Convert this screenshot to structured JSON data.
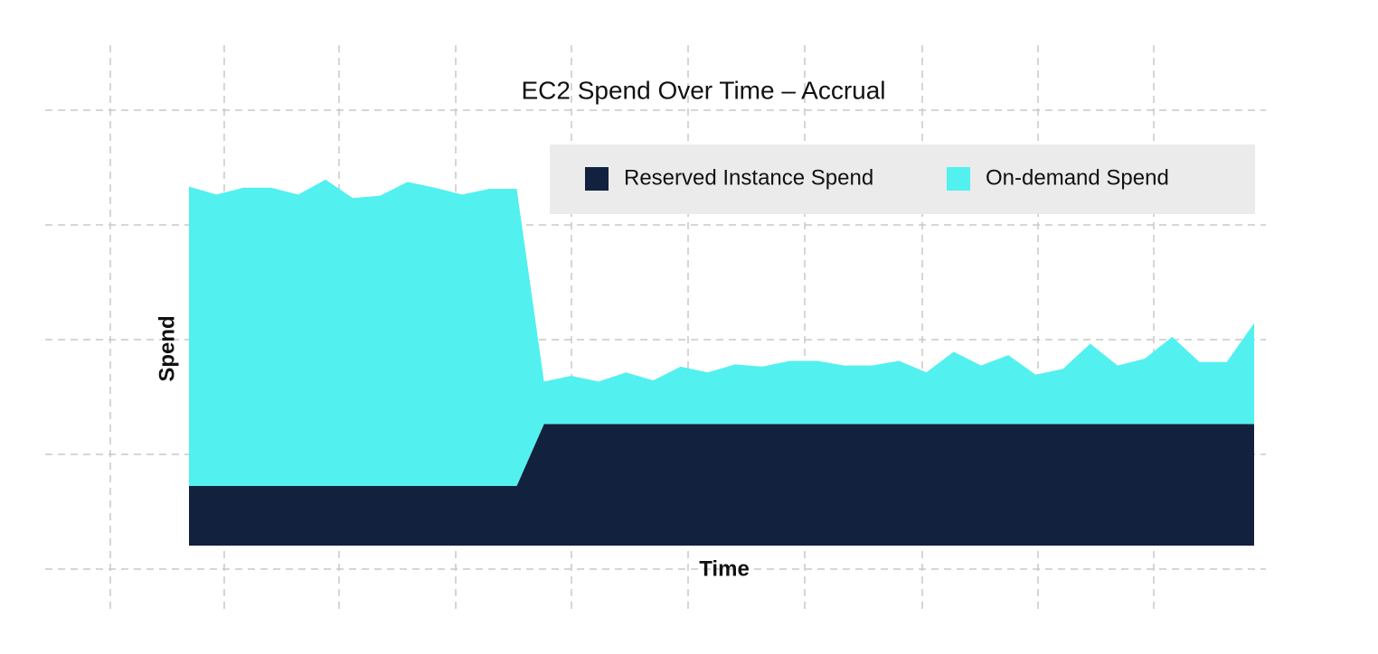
{
  "chart_data": {
    "type": "stacked-area",
    "title": "EC2 Spend Over Time – Accrual",
    "xlabel": "Time",
    "ylabel": "Spend",
    "categories": [
      null,
      null,
      null,
      null,
      null,
      null,
      null,
      null,
      null,
      null,
      null,
      null,
      null,
      null,
      null,
      null,
      null,
      null,
      null,
      null,
      null,
      null,
      null,
      null,
      null,
      null,
      null,
      null,
      null,
      null,
      null,
      null,
      null,
      null,
      null,
      null,
      null,
      null,
      null,
      null
    ],
    "ylim": [
      0,
      40
    ],
    "series": [
      {
        "name": "Reserved Instance Spend",
        "color": "#12213d",
        "values": [
          5.2,
          5.2,
          5.2,
          5.2,
          5.2,
          5.2,
          5.2,
          5.2,
          5.2,
          5.2,
          5.2,
          5.2,
          5.2,
          10.6,
          10.6,
          10.6,
          10.6,
          10.6,
          10.6,
          10.6,
          10.6,
          10.6,
          10.6,
          10.6,
          10.6,
          10.6,
          10.6,
          10.6,
          10.6,
          10.6,
          10.6,
          10.6,
          10.6,
          10.6,
          10.6,
          10.6,
          10.6,
          10.6,
          10.6,
          10.6
        ]
      },
      {
        "name": "On-demand Spend",
        "color": "#53f0f0",
        "values": [
          26.1,
          25.4,
          26.0,
          26.0,
          25.4,
          26.7,
          25.1,
          25.3,
          26.5,
          26.0,
          25.4,
          25.9,
          25.9,
          3.7,
          4.2,
          3.7,
          4.5,
          3.8,
          5.0,
          4.5,
          5.2,
          5.0,
          5.5,
          5.5,
          5.1,
          5.1,
          5.5,
          4.5,
          6.3,
          5.1,
          6.0,
          4.3,
          4.8,
          7.0,
          5.1,
          5.7,
          7.6,
          5.4,
          5.4,
          8.8
        ]
      }
    ]
  }
}
